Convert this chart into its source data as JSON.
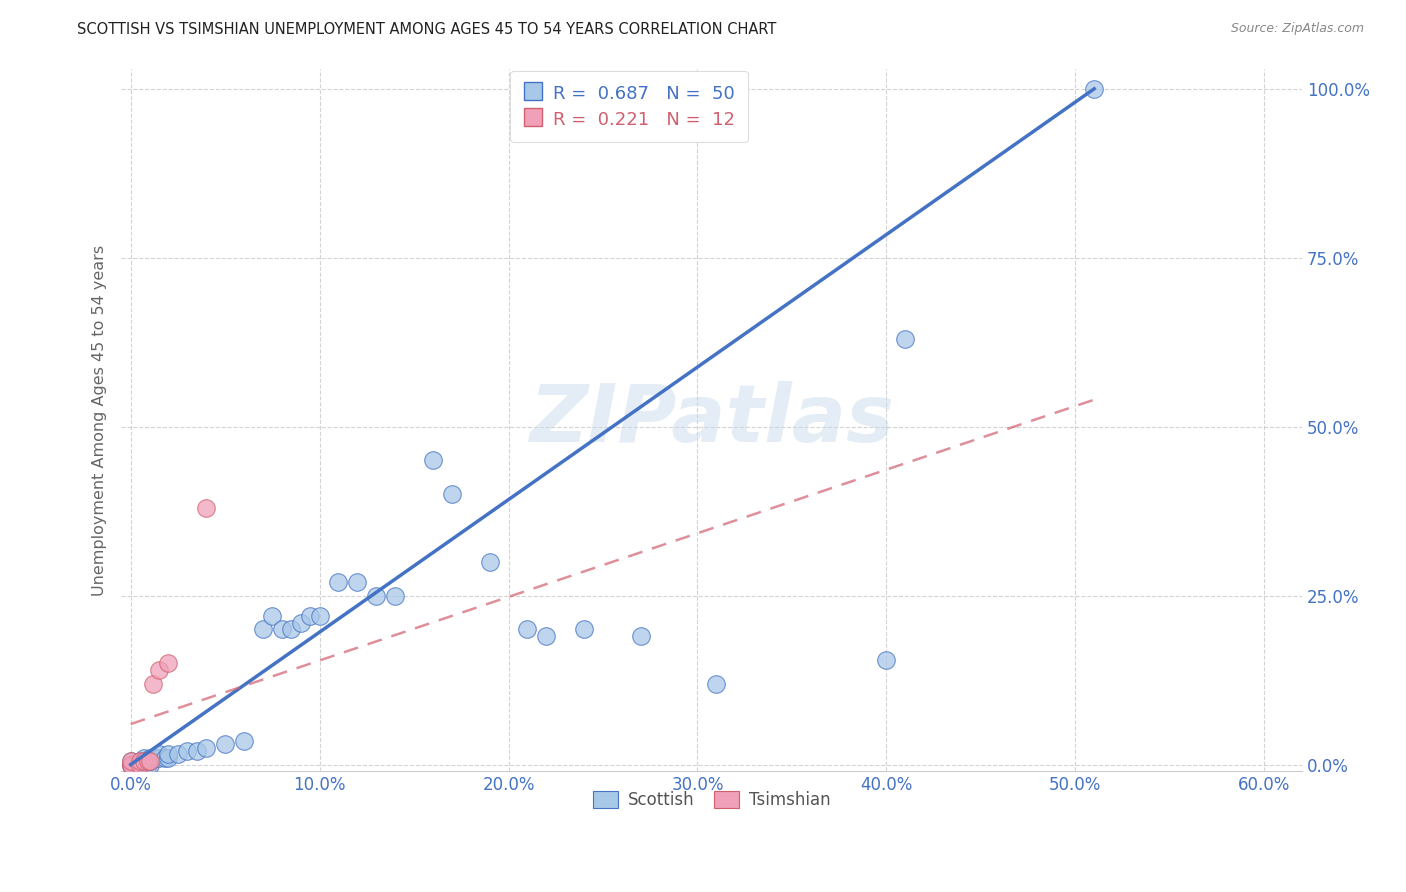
{
  "title": "SCOTTISH VS TSIMSHIAN UNEMPLOYMENT AMONG AGES 45 TO 54 YEARS CORRELATION CHART",
  "source": "Source: ZipAtlas.com",
  "ylabel": "Unemployment Among Ages 45 to 54 years",
  "x_tick_labels": [
    "0.0%",
    "10.0%",
    "20.0%",
    "30.0%",
    "40.0%",
    "50.0%",
    "60.0%"
  ],
  "x_tick_values": [
    0.0,
    0.1,
    0.2,
    0.3,
    0.4,
    0.5,
    0.6
  ],
  "y_tick_labels": [
    "0.0%",
    "25.0%",
    "50.0%",
    "75.0%",
    "100.0%"
  ],
  "y_tick_values": [
    0.0,
    0.25,
    0.5,
    0.75,
    1.0
  ],
  "xlim": [
    -0.005,
    0.62
  ],
  "ylim": [
    -0.01,
    1.03
  ],
  "legend_R_scottish": "0.687",
  "legend_N_scottish": "50",
  "legend_R_tsimshian": "0.221",
  "legend_N_tsimshian": "12",
  "scottish_color": "#a8c8e8",
  "tsimshian_color": "#f0a0b8",
  "trendline_scottish_color": "#4472c4",
  "trendline_tsimshian_color": "#d06070",
  "watermark": "ZIPatlas",
  "scottish_points": [
    [
      0.0,
      0.0
    ],
    [
      0.0,
      0.0
    ],
    [
      0.0,
      0.0
    ],
    [
      0.0,
      0.005
    ],
    [
      0.003,
      0.0
    ],
    [
      0.005,
      0.0
    ],
    [
      0.005,
      0.005
    ],
    [
      0.007,
      0.0
    ],
    [
      0.007,
      0.005
    ],
    [
      0.007,
      0.01
    ],
    [
      0.009,
      0.0
    ],
    [
      0.009,
      0.005
    ],
    [
      0.01,
      0.0
    ],
    [
      0.01,
      0.005
    ],
    [
      0.01,
      0.01
    ],
    [
      0.012,
      0.01
    ],
    [
      0.013,
      0.01
    ],
    [
      0.015,
      0.01
    ],
    [
      0.015,
      0.015
    ],
    [
      0.018,
      0.01
    ],
    [
      0.02,
      0.01
    ],
    [
      0.02,
      0.015
    ],
    [
      0.025,
      0.015
    ],
    [
      0.03,
      0.02
    ],
    [
      0.035,
      0.02
    ],
    [
      0.04,
      0.025
    ],
    [
      0.05,
      0.03
    ],
    [
      0.06,
      0.035
    ],
    [
      0.07,
      0.2
    ],
    [
      0.075,
      0.22
    ],
    [
      0.08,
      0.2
    ],
    [
      0.085,
      0.2
    ],
    [
      0.09,
      0.21
    ],
    [
      0.095,
      0.22
    ],
    [
      0.1,
      0.22
    ],
    [
      0.11,
      0.27
    ],
    [
      0.12,
      0.27
    ],
    [
      0.13,
      0.25
    ],
    [
      0.14,
      0.25
    ],
    [
      0.16,
      0.45
    ],
    [
      0.17,
      0.4
    ],
    [
      0.19,
      0.3
    ],
    [
      0.21,
      0.2
    ],
    [
      0.22,
      0.19
    ],
    [
      0.24,
      0.2
    ],
    [
      0.27,
      0.19
    ],
    [
      0.31,
      0.12
    ],
    [
      0.4,
      0.155
    ],
    [
      0.41,
      0.63
    ],
    [
      0.51,
      1.0
    ]
  ],
  "tsimshian_points": [
    [
      0.0,
      0.0
    ],
    [
      0.0,
      0.0
    ],
    [
      0.0,
      0.005
    ],
    [
      0.005,
      0.0
    ],
    [
      0.005,
      0.005
    ],
    [
      0.007,
      0.005
    ],
    [
      0.009,
      0.005
    ],
    [
      0.01,
      0.005
    ],
    [
      0.012,
      0.12
    ],
    [
      0.015,
      0.14
    ],
    [
      0.02,
      0.15
    ],
    [
      0.04,
      0.38
    ]
  ],
  "scottish_trend_x": [
    0.0,
    0.51
  ],
  "scottish_trend_y": [
    0.0,
    1.0
  ],
  "tsimshian_trend_x": [
    0.0,
    0.51
  ],
  "tsimshian_trend_y": [
    0.06,
    0.54
  ]
}
